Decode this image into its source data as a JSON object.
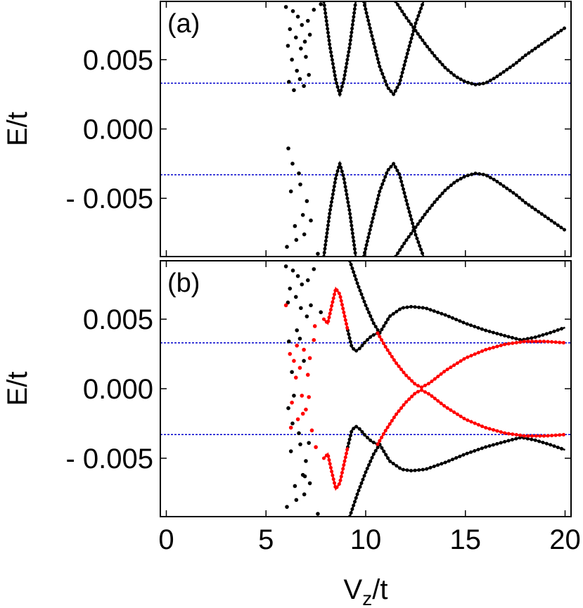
{
  "chart_data": [
    {
      "type": "line",
      "panel_label": "(a)",
      "ylabel": "E/t",
      "xlim": [
        -0.3,
        20.3
      ],
      "ylim": [
        -0.0092,
        0.0092
      ],
      "xticks": [
        0,
        5,
        10,
        15,
        20
      ],
      "show_xtick_labels": false,
      "yticks": [
        {
          "value": 0.005,
          "label": "0.005"
        },
        {
          "value": 0,
          "label": "0.000"
        },
        {
          "value": -0.005,
          "label": "- 0.005"
        }
      ],
      "hlines": [
        0.0033,
        -0.0033
      ],
      "hline_color": "#0000cc",
      "series": [
        {
          "mode": "line",
          "color": "#000000",
          "x": [
            7.9,
            8.2,
            8.5,
            8.7,
            8.9,
            9.2,
            9.5,
            9.7,
            9.9,
            10.3,
            10.7,
            11.1,
            11.4,
            11.7,
            12.1,
            12.5,
            12.9
          ],
          "values": [
            0.0092,
            0.006,
            0.0035,
            0.0025,
            0.0035,
            0.006,
            0.0092,
            null,
            0.0092,
            0.0068,
            0.0045,
            0.003,
            0.0025,
            0.0033,
            0.0055,
            0.0076,
            0.0092
          ]
        },
        {
          "mode": "line",
          "color": "#000000",
          "x": [
            11.5,
            12,
            12.5,
            13,
            13.5,
            14,
            14.5,
            15,
            15.5,
            16,
            16.5,
            17,
            17.5,
            18,
            18.5,
            19,
            19.5,
            20
          ],
          "values": [
            0.0092,
            0.0081,
            0.0071,
            0.0061,
            0.0052,
            0.0044,
            0.0038,
            0.0034,
            0.0032,
            0.0033,
            0.0037,
            0.0042,
            0.0047,
            0.0053,
            0.0058,
            0.0063,
            0.0068,
            0.0073
          ]
        },
        {
          "mode": "line",
          "color": "#000000",
          "x": [
            7.9,
            8.2,
            8.5,
            8.7,
            8.9,
            9.2,
            9.5,
            9.7,
            9.9,
            10.3,
            10.7,
            11.1,
            11.4,
            11.7,
            12.1,
            12.5,
            12.9
          ],
          "values": [
            -0.0092,
            -0.006,
            -0.0035,
            -0.0025,
            -0.0035,
            -0.006,
            -0.0092,
            null,
            -0.0092,
            -0.0068,
            -0.0045,
            -0.003,
            -0.0025,
            -0.0033,
            -0.0055,
            -0.0076,
            -0.0092
          ]
        },
        {
          "mode": "line",
          "color": "#000000",
          "x": [
            11.5,
            12,
            12.5,
            13,
            13.5,
            14,
            14.5,
            15,
            15.5,
            16,
            16.5,
            17,
            17.5,
            18,
            18.5,
            19,
            19.5,
            20
          ],
          "values": [
            -0.0092,
            -0.0081,
            -0.0071,
            -0.0061,
            -0.0052,
            -0.0044,
            -0.0038,
            -0.0034,
            -0.0032,
            -0.0033,
            -0.0037,
            -0.0042,
            -0.0047,
            -0.0053,
            -0.0058,
            -0.0063,
            -0.0068,
            -0.0073
          ]
        },
        {
          "mode": "markers",
          "color": "#000000",
          "x": [
            6.0,
            6.1,
            6.15,
            6.2,
            6.3,
            6.35,
            6.4,
            6.5,
            6.55,
            6.6,
            6.7,
            6.75,
            6.8,
            6.9,
            6.95,
            7.0,
            7.1,
            7.15,
            7.2,
            6.05,
            6.25,
            6.45,
            6.65,
            6.85,
            7.05,
            6.12,
            6.33,
            6.52,
            6.72,
            6.92,
            7.25,
            7.4,
            7.6,
            7.75
          ],
          "values": [
            0.0088,
            0.006,
            0.0034,
            0.0072,
            0.005,
            0.0085,
            0.0028,
            0.0066,
            0.0042,
            0.0081,
            0.0036,
            0.0058,
            0.0075,
            0.0031,
            0.0063,
            0.0052,
            0.0078,
            0.0039,
            0.0068,
            -0.0085,
            -0.0045,
            -0.007,
            -0.0032,
            -0.0062,
            -0.0052,
            -0.0014,
            -0.0025,
            -0.008,
            -0.004,
            -0.0076,
            -0.0066,
            0.0086,
            -0.009,
            0.009
          ]
        }
      ]
    },
    {
      "type": "line",
      "panel_label": "(b)",
      "ylabel": "E/t",
      "xlabel": [
        "V",
        "z",
        "/t"
      ],
      "xlim": [
        -0.3,
        20.3
      ],
      "ylim": [
        -0.0092,
        0.0092
      ],
      "xticks": [
        0,
        5,
        10,
        15,
        20
      ],
      "show_xtick_labels": true,
      "yticks": [
        {
          "value": 0.005,
          "label": "0.005"
        },
        {
          "value": 0,
          "label": "0.000"
        },
        {
          "value": -0.005,
          "label": "- 0.005"
        }
      ],
      "hlines": [
        0.0033,
        -0.0033
      ],
      "hline_color": "#0000cc",
      "series": [
        {
          "mode": "markers",
          "color": "#000000",
          "x": [
            6.0,
            6.1,
            6.15,
            6.2,
            6.3,
            6.35,
            6.4,
            6.5,
            6.55,
            6.6,
            6.7,
            6.75,
            6.8,
            6.9,
            6.95,
            7.0,
            7.1,
            7.15,
            7.2,
            6.05,
            6.25,
            6.45,
            6.65,
            6.85,
            7.05,
            6.12,
            6.33,
            6.52,
            6.72,
            6.92,
            7.25,
            7.4,
            7.6,
            7.75
          ],
          "values": [
            0.0088,
            0.0062,
            0.0034,
            0.0072,
            0.0012,
            0.0085,
            -0.0005,
            0.0066,
            0.0042,
            0.0081,
            0.0036,
            0.0058,
            0.0075,
            0.002,
            -0.0063,
            -0.0052,
            0.0078,
            -0.0039,
            -0.0068,
            -0.0085,
            -0.0045,
            -0.007,
            -0.0032,
            -0.0062,
            0.0052,
            -0.0014,
            -0.0025,
            -0.008,
            -0.004,
            -0.0076,
            0.006,
            0.0086,
            -0.009,
            0.0055
          ]
        },
        {
          "mode": "line",
          "color": "#000000",
          "x": [
            9.2,
            9.6,
            10,
            10.4,
            10.7,
            11.2,
            11.8,
            12.3,
            13,
            14,
            15,
            16,
            17,
            17.8,
            18.5,
            19.2,
            20
          ],
          "values": [
            0.0092,
            0.0075,
            0.006,
            0.0047,
            0.004,
            0.0052,
            0.0058,
            0.0059,
            0.0058,
            0.0053,
            0.0047,
            0.0042,
            0.0038,
            0.0035,
            0.0037,
            0.004,
            0.0044
          ]
        },
        {
          "mode": "line",
          "color": "#000000",
          "x": [
            9.1,
            9.3,
            9.5,
            9.7,
            10,
            10.3,
            10.6
          ],
          "values": [
            0.0042,
            0.003,
            0.0027,
            0.0029,
            0.0034,
            0.0038,
            0.004
          ]
        },
        {
          "mode": "line",
          "color": "#000000",
          "x": [
            9.2,
            9.6,
            10,
            10.4,
            10.7,
            11.2,
            11.8,
            12.3,
            13,
            14,
            15,
            16,
            17,
            17.8,
            18.5,
            19.2,
            20
          ],
          "values": [
            -0.0092,
            -0.0075,
            -0.006,
            -0.0047,
            -0.004,
            -0.0052,
            -0.0058,
            -0.0059,
            -0.0058,
            -0.0053,
            -0.0047,
            -0.0042,
            -0.0038,
            -0.0035,
            -0.0037,
            -0.004,
            -0.0044
          ]
        },
        {
          "mode": "line",
          "color": "#000000",
          "x": [
            9.1,
            9.3,
            9.5,
            9.7,
            10,
            10.3,
            10.6
          ],
          "values": [
            -0.0042,
            -0.003,
            -0.0027,
            -0.0029,
            -0.0034,
            -0.0038,
            -0.004
          ]
        },
        {
          "mode": "markers",
          "color": "#ff0000",
          "x": [
            6.0,
            6.2,
            6.3,
            6.4,
            6.5,
            6.6,
            6.7,
            6.8,
            6.9,
            7.0,
            7.1,
            7.2,
            7.3,
            7.4,
            7.5,
            6.25,
            6.55,
            6.85,
            7.15,
            7.45
          ],
          "values": [
            0.006,
            0.0025,
            -0.001,
            0.002,
            0.0008,
            -0.0022,
            0.0015,
            -0.0005,
            0.0028,
            -0.0015,
            0.001,
            0.0022,
            -0.003,
            0.0035,
            -0.0042,
            -0.0028,
            0.0031,
            -0.0018,
            -0.0006,
            0.0045
          ]
        },
        {
          "mode": "line",
          "color": "#ff0000",
          "x": [
            7.9,
            8.1,
            8.3,
            8.5,
            8.7,
            8.9,
            9.1
          ],
          "values": [
            0.005,
            0.0047,
            0.006,
            0.0072,
            0.0068,
            0.0055,
            0.0042
          ]
        },
        {
          "mode": "line",
          "color": "#ff0000",
          "x": [
            10.6,
            11,
            11.5,
            12,
            12.5,
            12.8,
            13.2,
            14,
            15,
            16,
            17,
            18,
            19,
            20
          ],
          "values": [
            0.004,
            0.003,
            0.0019,
            0.001,
            0.0003,
            0.0001,
            0.0004,
            0.0013,
            0.0022,
            0.0028,
            0.0032,
            0.0034,
            0.0034,
            0.0033
          ]
        },
        {
          "mode": "line",
          "color": "#ff0000",
          "x": [
            7.9,
            8.1,
            8.3,
            8.5,
            8.7,
            8.9,
            9.1
          ],
          "values": [
            -0.005,
            -0.0047,
            -0.006,
            -0.0072,
            -0.0068,
            -0.0055,
            -0.0042
          ]
        },
        {
          "mode": "line",
          "color": "#ff0000",
          "x": [
            10.6,
            11,
            11.5,
            12,
            12.5,
            12.8,
            13.2,
            14,
            15,
            16,
            17,
            18,
            19,
            20
          ],
          "values": [
            -0.004,
            -0.003,
            -0.0019,
            -0.001,
            -0.0003,
            -0.0001,
            -0.0004,
            -0.0013,
            -0.0022,
            -0.0028,
            -0.0032,
            -0.0034,
            -0.0034,
            -0.0033
          ]
        }
      ]
    }
  ]
}
